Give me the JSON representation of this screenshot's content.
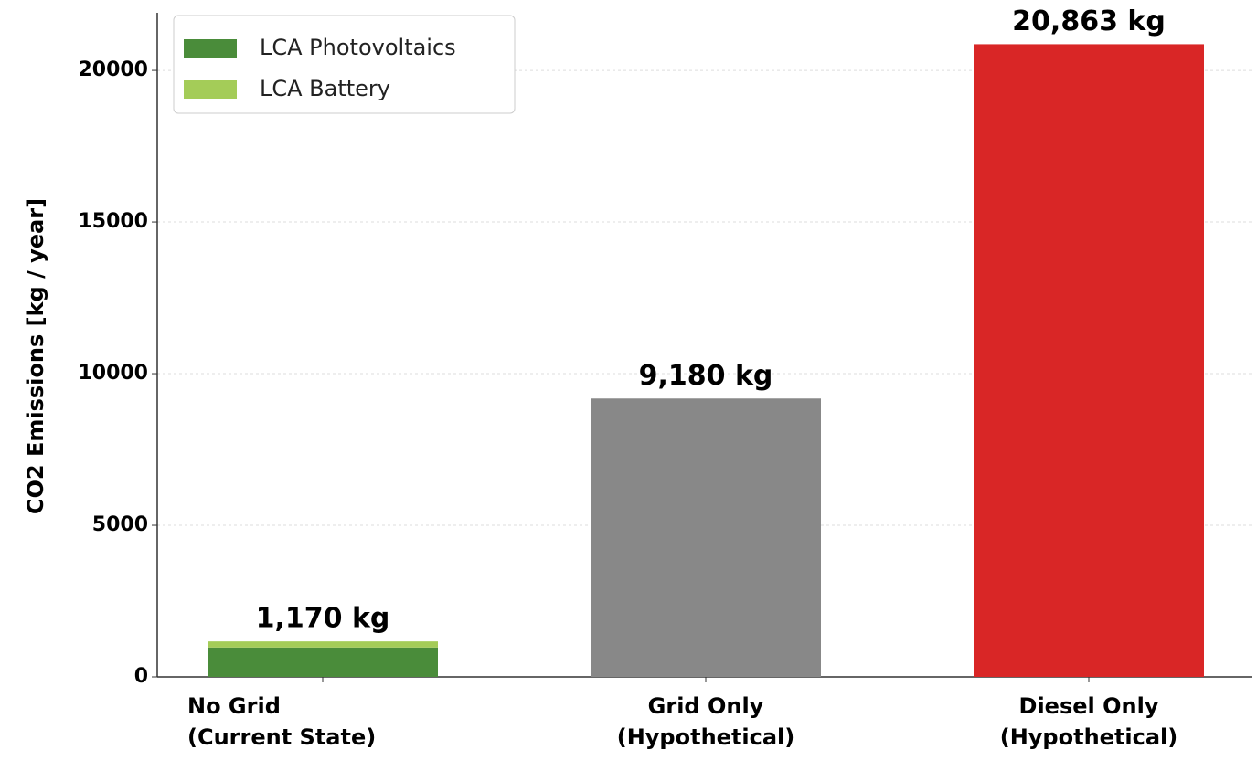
{
  "chart_data": {
    "type": "stacked_bar",
    "ylabel": "CO2 Emissions [kg / year]",
    "categories": [
      "No Grid\n(Current State)",
      "Grid Only\n(Hypothetical)",
      "Diesel Only\n(Hypothetical)"
    ],
    "series": [
      {
        "name": "LCA Photovoltaics",
        "color": "#4a8c3a",
        "values": [
          970,
          null,
          null
        ]
      },
      {
        "name": "LCA Battery",
        "color": "#a4cc58",
        "values": [
          200,
          null,
          null
        ]
      }
    ],
    "other_bars": {
      "values": [
        null,
        9180,
        20863
      ],
      "colors": [
        null,
        "#888888",
        "#d92626"
      ]
    },
    "value_labels": [
      "1,170 kg",
      "9,180 kg",
      "20,863 kg"
    ],
    "ylim": [
      0,
      21900
    ],
    "yticks": [
      0,
      5000,
      10000,
      15000,
      20000
    ],
    "grid": true,
    "legend": "upper left"
  }
}
